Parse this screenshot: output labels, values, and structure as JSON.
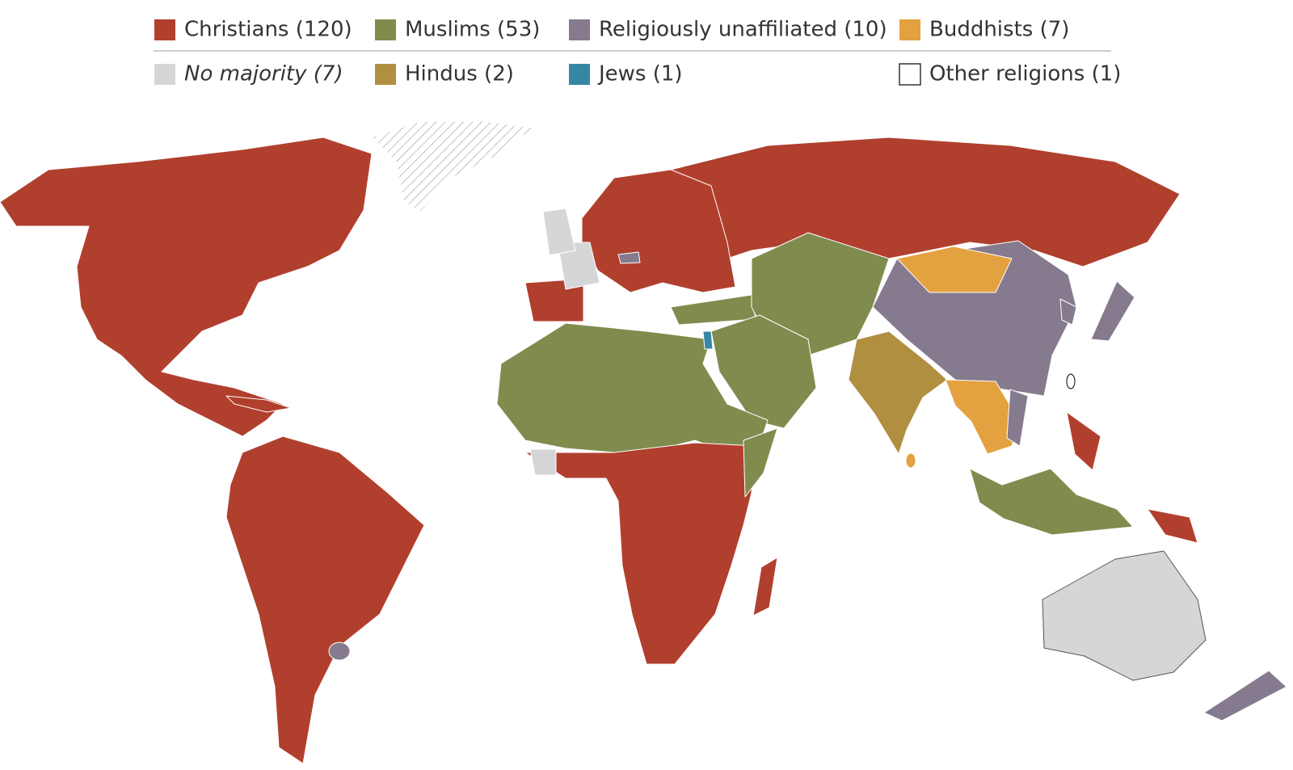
{
  "legend": [
    {
      "label": "Christians (120)",
      "color": "#b13f2e"
    },
    {
      "label": "Muslims (53)",
      "color": "#7f8c4e"
    },
    {
      "label": "Religiously unaffiliated (10)",
      "color": "#857a8e"
    },
    {
      "label": "Buddhists (7)",
      "color": "#e3a13f"
    },
    {
      "label": "No majority (7)",
      "color": "#d6d6d8",
      "italic": true
    },
    {
      "label": "Hindus (2)",
      "color": "#b08f41"
    },
    {
      "label": "Jews (1)",
      "color": "#3587a4"
    },
    {
      "label": "Other religions (1)",
      "color": "#ffffff"
    }
  ]
}
